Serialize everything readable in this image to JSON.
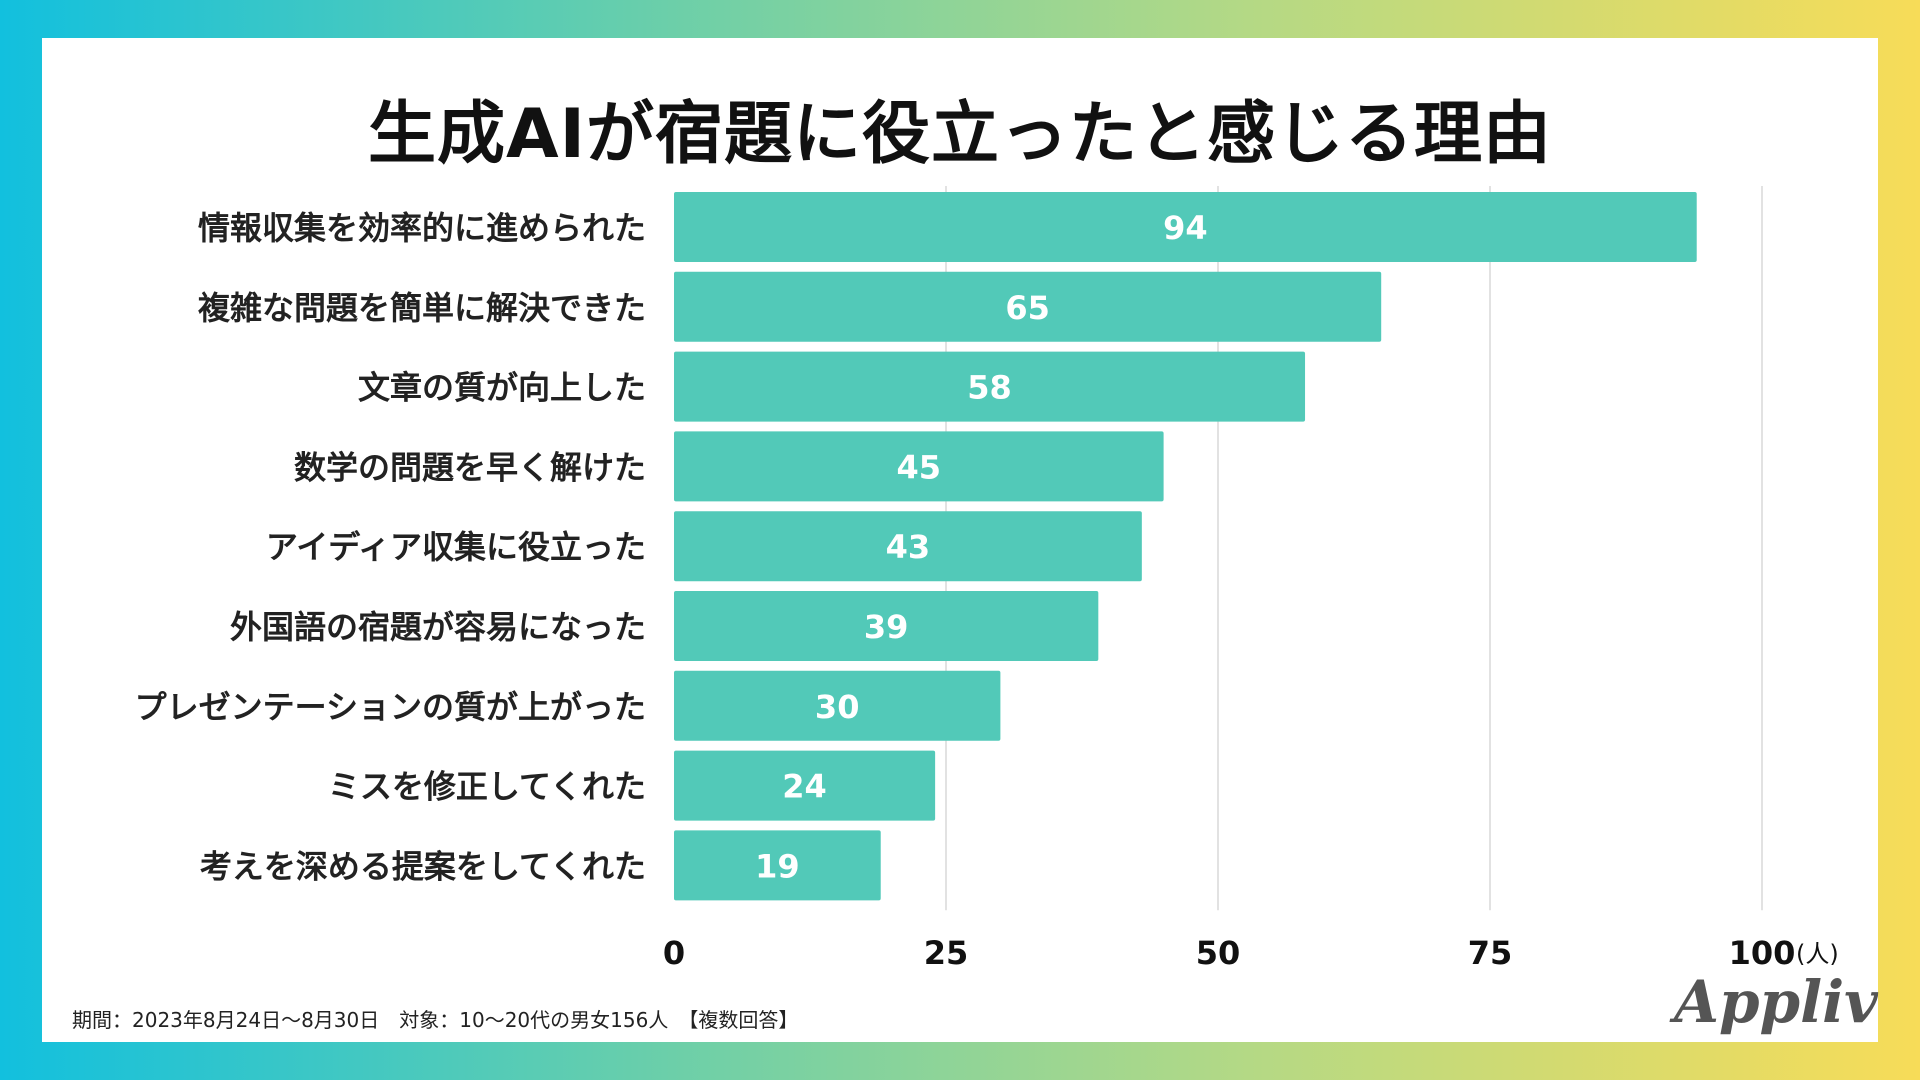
{
  "title": "生成AIが宿題に役立ったと感じる理由",
  "chart_data": {
    "type": "bar",
    "orientation": "horizontal",
    "title": "生成AIが宿題に役立ったと感じる理由",
    "categories": [
      "情報収集を効率的に進められた",
      "複雑な問題を簡単に解決できた",
      "文章の質が向上した",
      "数学の問題を早く解けた",
      "アイディア収集に役立った",
      "外国語の宿題が容易になった",
      "プレゼンテーションの質が上がった",
      "ミスを修正してくれた",
      "考えを深める提案をしてくれた"
    ],
    "values": [
      94,
      65,
      58,
      45,
      43,
      39,
      30,
      24,
      19
    ],
    "xlim": [
      0,
      100
    ],
    "xticks": [
      0,
      25,
      50,
      75,
      100
    ],
    "xunit": "(人)",
    "grid": true,
    "bar_color": "#52c9b8",
    "label_color": "#ffffff"
  },
  "footnote": "期間：2023年8月24日〜8月30日　対象：10〜20代の男女156人　【複数回答】",
  "logo": "Appliv"
}
